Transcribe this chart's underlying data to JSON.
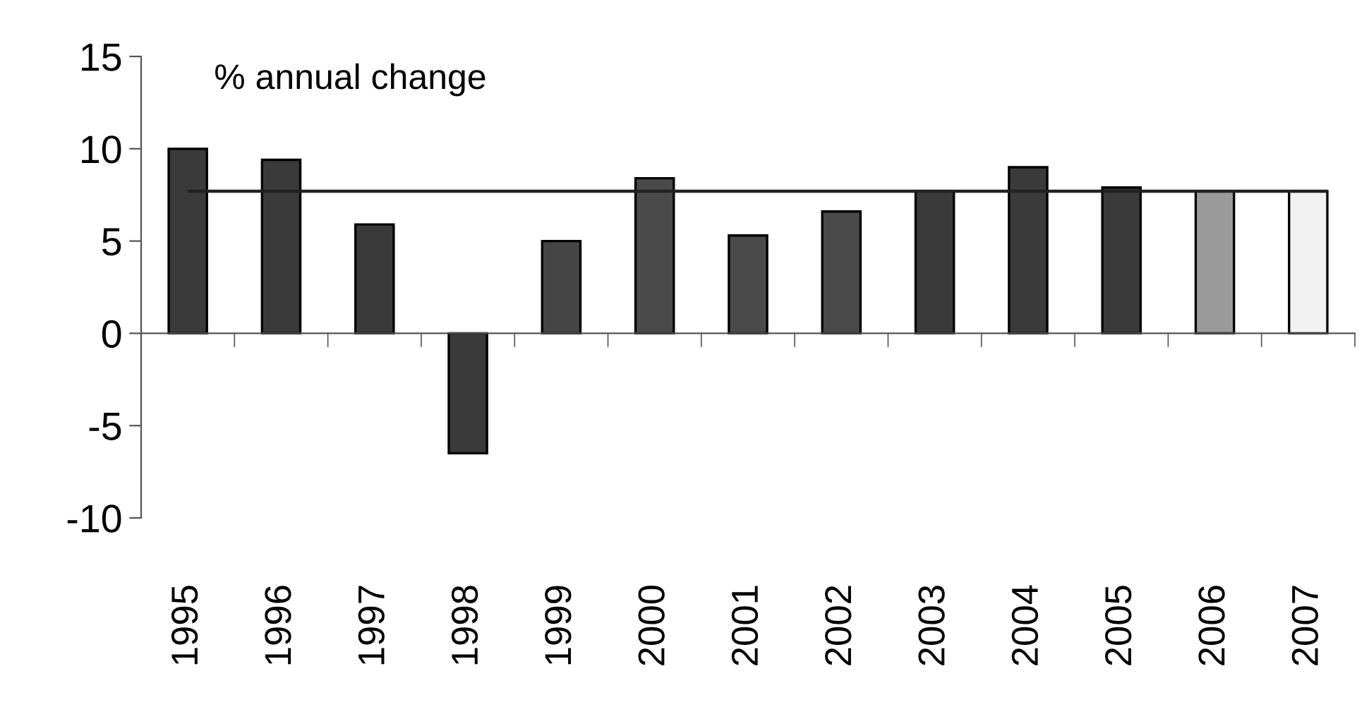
{
  "chart_data": {
    "type": "bar",
    "title": "% annual change",
    "categories": [
      "1995",
      "1996",
      "1997",
      "1998",
      "1999",
      "2000",
      "2001",
      "2002",
      "2003",
      "2004",
      "2005",
      "2006",
      "2007"
    ],
    "values": [
      10.0,
      9.4,
      5.9,
      -6.5,
      5.0,
      8.4,
      5.3,
      6.6,
      7.7,
      9.0,
      7.9,
      7.7,
      7.7
    ],
    "colors": [
      "#3a3a3a",
      "#3a3a3a",
      "#3a3a3a",
      "#3a3a3a",
      "#454545",
      "#4a4a4a",
      "#4a4a4a",
      "#4a4a4a",
      "#3a3a3a",
      "#3a3a3a",
      "#3a3a3a",
      "#9a9a9a",
      "#f2f2f2"
    ],
    "ylim": [
      -10,
      15
    ],
    "yticks": [
      -10,
      -5,
      0,
      5,
      10,
      15
    ],
    "ref_lines": [
      {
        "axis": "y",
        "value": 7.7,
        "color": "#222222"
      }
    ],
    "legend": false
  }
}
